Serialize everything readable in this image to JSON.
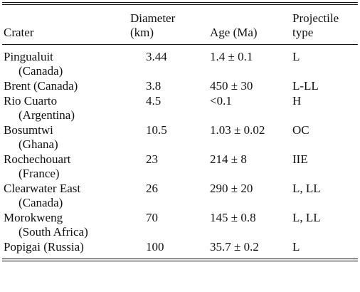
{
  "table": {
    "headers": {
      "crater": "Crater",
      "diameter_line1": "Diameter",
      "diameter_line2": "(km)",
      "age": "Age (Ma)",
      "projectile_line1": "Projectile",
      "projectile_line2": "type"
    },
    "rows": [
      {
        "crater_line1": "Pingualuit",
        "crater_line2": "(Canada)",
        "diameter": "3.44",
        "age": "1.4 ± 0.1",
        "projectile": "L"
      },
      {
        "crater_line1": "Brent (Canada)",
        "crater_line2": "",
        "diameter": "3.8",
        "age": "450 ± 30",
        "projectile": "L-LL"
      },
      {
        "crater_line1": "Rio Cuarto",
        "crater_line2": "(Argentina)",
        "diameter": "4.5",
        "age": "<0.1",
        "projectile": "H"
      },
      {
        "crater_line1": "Bosumtwi",
        "crater_line2": "(Ghana)",
        "diameter": "10.5",
        "age": "1.03 ± 0.02",
        "projectile": "OC"
      },
      {
        "crater_line1": "Rochechouart",
        "crater_line2": "(France)",
        "diameter": "23",
        "age": "214 ± 8",
        "projectile": "IIE"
      },
      {
        "crater_line1": "Clearwater East",
        "crater_line2": "(Canada)",
        "diameter": "26",
        "age": "290 ± 20",
        "projectile": "L, LL"
      },
      {
        "crater_line1": "Morokweng",
        "crater_line2": "(South Africa)",
        "diameter": "70",
        "age": "145 ± 0.8",
        "projectile": "L, LL"
      },
      {
        "crater_line1": "Popigai (Russia)",
        "crater_line2": "",
        "diameter": "100",
        "age": "35.7 ± 0.2",
        "projectile": "L"
      }
    ]
  }
}
